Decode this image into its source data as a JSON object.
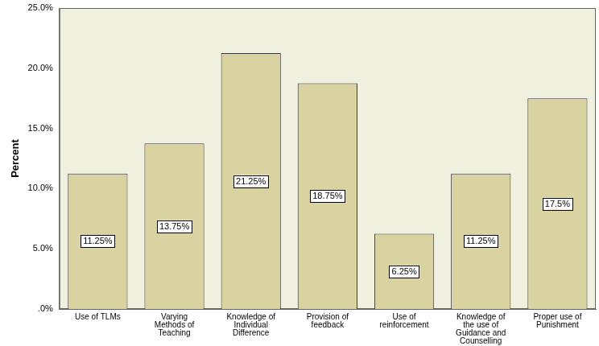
{
  "chart_data": {
    "type": "bar",
    "categories": [
      "Use of TLMs",
      "Varying Methods of Teaching",
      "Knowledge of Individual Difference",
      "Provision of feedback",
      "Use of reinforcement",
      "Knowledge of the use of Guidance and Counselling",
      "Proper use of Punishment"
    ],
    "values": [
      11.25,
      13.75,
      21.25,
      18.75,
      6.25,
      11.25,
      17.5
    ],
    "value_labels": [
      "11.25%",
      "13.75%",
      "21.25%",
      "18.75%",
      "6.25%",
      "11.25%",
      "17.5%"
    ],
    "color": "#d8d3a0",
    "y_label": "Percent",
    "ylim": [
      0,
      25
    ],
    "yticks": [
      {
        "value": 0,
        "label": ".0%"
      },
      {
        "value": 5,
        "label": "5.0%"
      },
      {
        "value": 10,
        "label": "10.0%"
      },
      {
        "value": 15,
        "label": "15.0%"
      },
      {
        "value": 20,
        "label": "20.0%"
      },
      {
        "value": 25,
        "label": "25.0%"
      }
    ],
    "data_labels": true,
    "grid": false
  }
}
